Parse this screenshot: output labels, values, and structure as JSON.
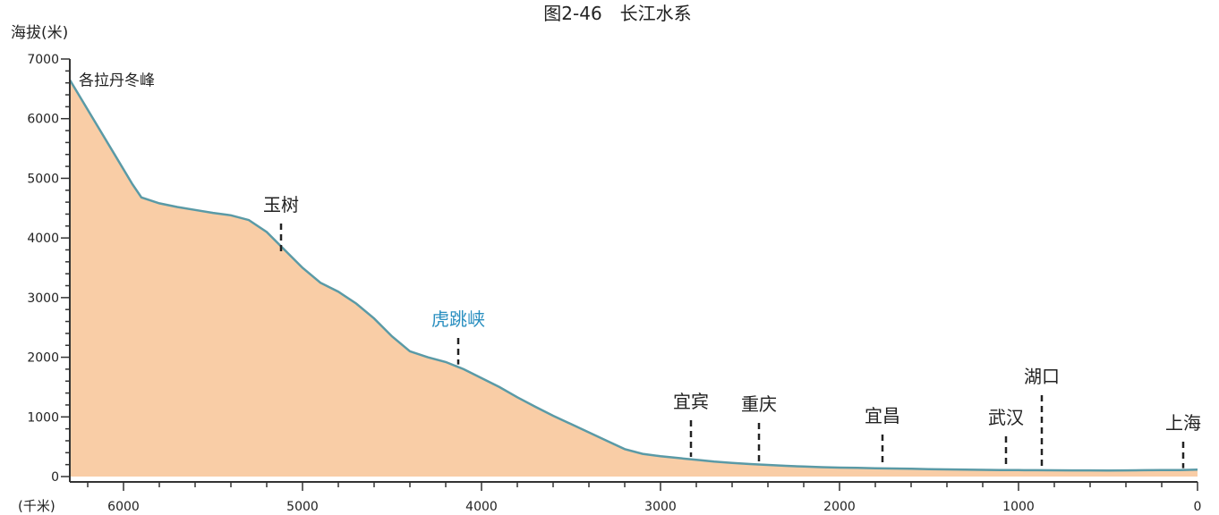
{
  "chart_data": {
    "type": "area",
    "title": "图2-46　长江水系",
    "ylabel": "海拔(米)",
    "xlabel": "(千米)",
    "xlim": [
      6300,
      0
    ],
    "ylim": [
      0,
      7000
    ],
    "x_ticks": [
      6000,
      5000,
      4000,
      3000,
      2000,
      1000,
      0
    ],
    "y_ticks": [
      0,
      1000,
      2000,
      3000,
      4000,
      5000,
      6000,
      7000
    ],
    "grid": false,
    "colors": {
      "fill": "#f9cda6",
      "line": "#5a9aa6",
      "axis": "#333333",
      "highlight": "#2a8fc0"
    },
    "series": [
      {
        "x": [
          6300,
          6250,
          6150,
          6050,
          5950,
          5900,
          5800,
          5700,
          5600,
          5500,
          5400,
          5300,
          5200,
          5100,
          5000,
          4900,
          4800,
          4700,
          4600,
          4500,
          4400,
          4300,
          4200,
          4100,
          4000,
          3900,
          3800,
          3700,
          3600,
          3500,
          3400,
          3300,
          3200,
          3100,
          3000,
          2900,
          2800,
          2700,
          2600,
          2500,
          2400,
          2300,
          2200,
          2100,
          2000,
          1900,
          1800,
          1700,
          1600,
          1500,
          1400,
          1300,
          1200,
          1100,
          1000,
          900,
          800,
          700,
          600,
          500,
          400,
          300,
          200,
          100,
          0
        ],
        "y": [
          6650,
          6400,
          5900,
          5400,
          4900,
          4680,
          4580,
          4520,
          4470,
          4420,
          4380,
          4300,
          4100,
          3800,
          3500,
          3250,
          3100,
          2900,
          2650,
          2350,
          2100,
          2000,
          1920,
          1800,
          1650,
          1500,
          1330,
          1170,
          1020,
          880,
          740,
          600,
          460,
          380,
          340,
          310,
          280,
          250,
          230,
          210,
          195,
          180,
          168,
          158,
          150,
          145,
          140,
          135,
          130,
          125,
          120,
          115,
          112,
          110,
          108,
          106,
          105,
          104,
          103,
          102,
          104,
          106,
          108,
          110,
          115
        ]
      }
    ],
    "places": [
      {
        "name": "各拉丹冬峰",
        "km": 6300,
        "elevation": 6621
      },
      {
        "name": "玉树",
        "km": 5120,
        "elevation": 3680
      },
      {
        "name": "虎跳峡",
        "km": 4130,
        "elevation": 1850,
        "highlight": true
      },
      {
        "name": "宜宾",
        "km": 2830,
        "elevation": 300
      },
      {
        "name": "重庆",
        "km": 2450,
        "elevation": 200
      },
      {
        "name": "宜昌",
        "km": 1760,
        "elevation": 140
      },
      {
        "name": "武汉",
        "km": 1070,
        "elevation": 110
      },
      {
        "name": "湖口",
        "km": 870,
        "elevation": 105
      },
      {
        "name": "上海",
        "km": 80,
        "elevation": 110
      }
    ]
  }
}
